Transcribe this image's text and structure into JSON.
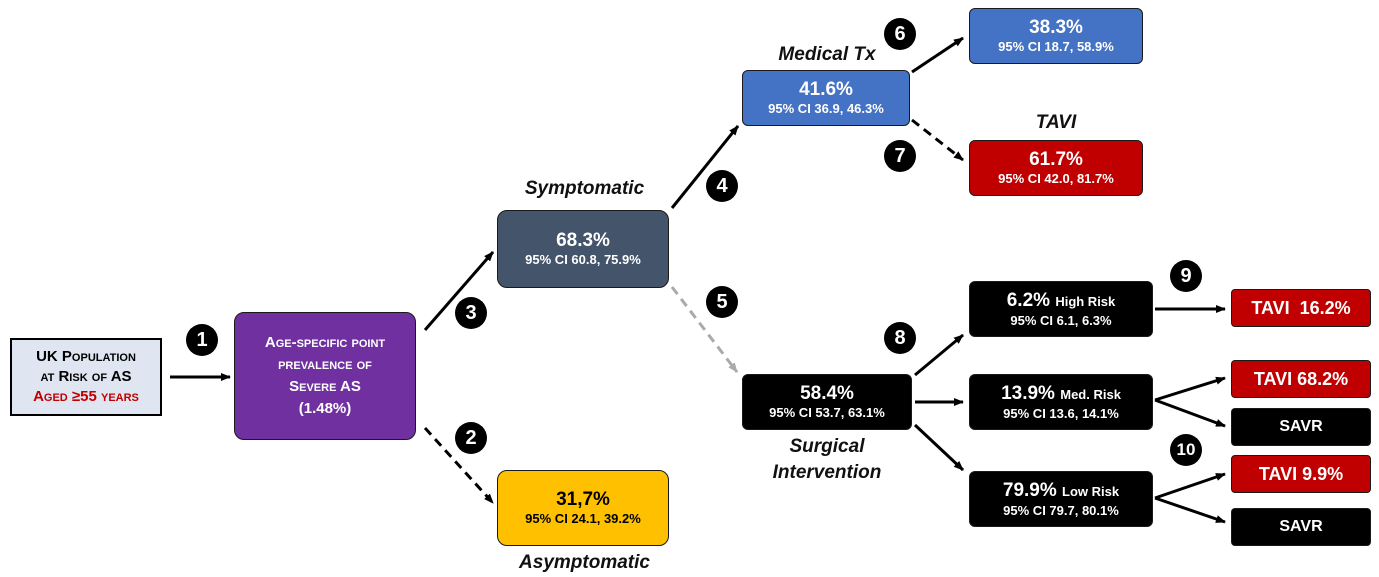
{
  "population": {
    "line1": "UK Population",
    "line2": "at Risk of AS",
    "line3": "Aged ≥55 years"
  },
  "prevalence": {
    "line1": "Age-specific point",
    "line2": "prevalence of",
    "line3": "Severe AS",
    "value": "(1.48%)"
  },
  "symptomatic": {
    "label": "Symptomatic",
    "pct": "68.3%",
    "ci": "95% CI 60.8, 75.9%"
  },
  "asymptomatic": {
    "label": "Asymptomatic",
    "pct": "31,7%",
    "ci": "95% CI 24.1, 39.2%"
  },
  "medical_tx": {
    "label": "Medical Tx",
    "pct": "41.6%",
    "ci": "95% CI 36.9, 46.3%"
  },
  "medical_outcome": {
    "pct": "38.3%",
    "ci": "95% CI 18.7, 58.9%"
  },
  "tavi_outcome": {
    "label": "TAVI",
    "pct": "61.7%",
    "ci": "95% CI 42.0, 81.7%"
  },
  "surgical": {
    "label1": "Surgical",
    "label2": "Intervention",
    "pct": "58.4%",
    "ci": "95% CI 53.7, 63.1%"
  },
  "high_risk": {
    "pct": "6.2%",
    "risk": "High Risk",
    "ci": "95% CI 6.1, 6.3%"
  },
  "med_risk": {
    "pct": "13.9%",
    "risk": "Med. Risk",
    "ci": "95% CI 13.6, 14.1%"
  },
  "low_risk": {
    "pct": "79.9%",
    "risk": "Low Risk",
    "ci": "95% CI 79.7, 80.1%"
  },
  "tavi_high": "TAVI  16.2%",
  "tavi_med": "TAVI 68.2%",
  "savr_med": "SAVR",
  "tavi_low": "TAVI 9.9%",
  "savr_low": "SAVR",
  "steps": [
    "1",
    "2",
    "3",
    "4",
    "5",
    "6",
    "7",
    "8",
    "9",
    "10"
  ],
  "colors": {
    "purple": "#7030a0",
    "slate": "#44546a",
    "yellow": "#ffc000",
    "blue": "#4472c4",
    "red": "#c00000",
    "black": "#000000",
    "dark_red_text": "#c00000"
  }
}
